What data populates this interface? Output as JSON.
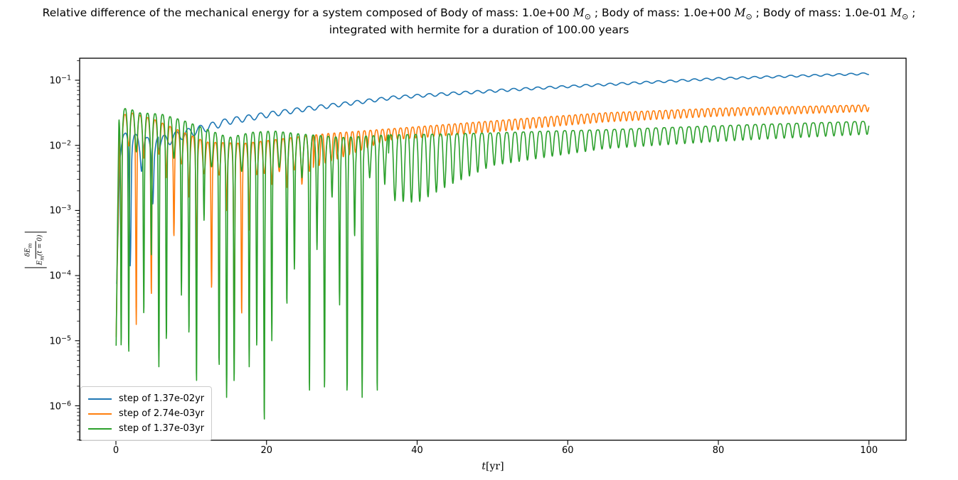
{
  "figure": {
    "title_line1_parts": [
      {
        "text": "Relative difference of the mechanical energy for a system composed of Body of mass: 1.0e+00 "
      },
      {
        "text": "M",
        "style": "italic"
      },
      {
        "text": "⊙",
        "style": "sub"
      },
      {
        "text": " ; Body of mass: 1.0e+00 "
      },
      {
        "text": "M",
        "style": "italic"
      },
      {
        "text": "⊙",
        "style": "sub"
      },
      {
        "text": " ; Body of mass: 1.0e-01 "
      },
      {
        "text": "M",
        "style": "italic"
      },
      {
        "text": "⊙",
        "style": "sub"
      },
      {
        "text": " ;"
      }
    ],
    "title_line2": "integrated with hermite for a duration of 100.00 years",
    "xlabel": {
      "italic_part": "t",
      "rest": "[yr]"
    },
    "ylabel": {
      "numerator_main": "δE",
      "numerator_sub": "m",
      "denominator_main": "E",
      "denominator_sub": "m",
      "denominator_rest": "(t = 0)"
    }
  },
  "chart_data": {
    "type": "line",
    "title": "Relative difference of the mechanical energy for a system composed of Body of mass: 1.0e+00 M⊙ ; Body of mass: 1.0e+00 M⊙ ; Body of mass: 1.0e-01 M⊙ ; integrated with hermite for a duration of 100.00 years",
    "xlabel": "t[yr]",
    "ylabel": "|δE_m / E_m(t=0)|",
    "grid": false,
    "x_axis": {
      "min": -4.82,
      "max": 104.93,
      "ticks": [
        0,
        20,
        40,
        60,
        80,
        100
      ]
    },
    "y_axis": {
      "scale": "log",
      "min_log10": -6.53,
      "max_log10": -0.662,
      "tick_exponents": [
        -1,
        -2,
        -3,
        -4,
        -5,
        -6
      ]
    },
    "legend": {
      "position": "lower left",
      "entries": [
        "step of 1.37e-02yr",
        "step of 2.74e-03yr",
        "step of 1.37e-03yr"
      ]
    },
    "series": [
      {
        "name": "step of 1.37e-02yr",
        "color": "#1f77b4",
        "t_start": 0.1,
        "trend_log10": [
          [
            0.1,
            -3.95
          ],
          [
            0.5,
            -1.9
          ],
          [
            1.5,
            -1.78
          ],
          [
            3,
            -1.85
          ],
          [
            5,
            -1.9
          ],
          [
            7,
            -1.82
          ],
          [
            10,
            -1.73
          ],
          [
            15,
            -1.58
          ],
          [
            20,
            -1.49
          ],
          [
            25,
            -1.41
          ],
          [
            30,
            -1.34
          ],
          [
            37,
            -1.24
          ],
          [
            45,
            -1.18
          ],
          [
            55,
            -1.11
          ],
          [
            65,
            -1.05
          ],
          [
            80,
            -0.96
          ],
          [
            100,
            -0.885
          ]
        ],
        "chaos": {
          "end": 5.65,
          "period": 1.5,
          "phase": -0.35,
          "base_amp": 0.35,
          "spike_depths_log10": [
            -2.3,
            -3.85,
            -2.4,
            -2.9
          ]
        },
        "osc": {
          "period": 1.6,
          "phase": 0,
          "sharpness": 1.2,
          "amp_log10": [
            [
              5.65,
              0.22
            ],
            [
              8,
              0.15
            ],
            [
              15,
              0.1
            ],
            [
              25,
              0.07
            ],
            [
              37,
              0.05
            ],
            [
              60,
              0.035
            ],
            [
              100,
              0.028
            ]
          ]
        }
      },
      {
        "name": "step of 2.74e-03yr",
        "color": "#ff7f0e",
        "t_start": 0.03,
        "trend_log10": [
          [
            0,
            -5.1
          ],
          [
            0.5,
            -1.55
          ],
          [
            2,
            -1.5
          ],
          [
            5,
            -1.6
          ],
          [
            8,
            -1.75
          ],
          [
            12,
            -1.95
          ],
          [
            17,
            -1.97
          ],
          [
            22,
            -1.9
          ],
          [
            28,
            -1.82
          ],
          [
            36,
            -1.75
          ],
          [
            45,
            -1.67
          ],
          [
            55,
            -1.58
          ],
          [
            65,
            -1.5
          ],
          [
            80,
            -1.43
          ],
          [
            100,
            -1.38
          ]
        ],
        "chaos": {
          "end": 26.2,
          "period": 1.0,
          "phase": 0.2,
          "base_amp": 0.5,
          "spike_depths_log10": [
            -4.3,
            -2.0,
            -4.75,
            -2.2,
            -4.3,
            -1.95,
            -2.5,
            -3.4,
            -2.15,
            -2.8,
            -3.9,
            -2.2,
            -4.2,
            -2.05,
            -3.0,
            -5.3,
            -4.6,
            -3.3,
            -2.45,
            -2.2,
            -2.6,
            -2.2,
            -2.65,
            -2.3,
            -2.6,
            -2.4
          ]
        },
        "osc": {
          "period": 0.8,
          "phase": 0.2,
          "sharpness": 1.7,
          "amp_log10": [
            [
              26.2,
              0.5
            ],
            [
              31,
              0.35
            ],
            [
              36,
              0.17
            ],
            [
              50,
              0.17
            ],
            [
              65,
              0.14
            ],
            [
              100,
              0.1
            ]
          ]
        }
      },
      {
        "name": "step of 1.37e-03yr",
        "color": "#2ca02c",
        "t_start": 0.03,
        "trend_log10": [
          [
            0,
            -5.3
          ],
          [
            0.4,
            -1.48
          ],
          [
            1.5,
            -1.42
          ],
          [
            3,
            -1.5
          ],
          [
            6,
            -1.52
          ],
          [
            9,
            -1.62
          ],
          [
            12,
            -1.75
          ],
          [
            15,
            -1.88
          ],
          [
            18,
            -1.8
          ],
          [
            21,
            -1.78
          ],
          [
            24,
            -1.82
          ],
          [
            27,
            -1.85
          ],
          [
            30,
            -1.88
          ],
          [
            33,
            -1.86
          ],
          [
            36,
            -1.84
          ],
          [
            42,
            -1.83
          ],
          [
            50,
            -1.81
          ],
          [
            58,
            -1.78
          ],
          [
            65,
            -1.76
          ],
          [
            75,
            -1.72
          ],
          [
            85,
            -1.68
          ],
          [
            100,
            -1.63
          ]
        ],
        "chaos": {
          "end": 36.2,
          "period": 1.0,
          "phase": 0.2,
          "base_amp": 0.55,
          "spike_depths_log10": [
            -5.1,
            -5.2,
            -2.1,
            -4.6,
            -3.7,
            -5.4,
            -5.0,
            -2.2,
            -4.3,
            -4.9,
            -5.65,
            -3.15,
            -2.3,
            -5.4,
            -5.87,
            -5.65,
            -2.4,
            -5.4,
            -5.1,
            -6.25,
            -5.0,
            -2.2,
            -4.45,
            -3.9,
            -2.5,
            -5.8,
            -3.6,
            -5.75,
            -2.8,
            -4.45,
            -5.8,
            -3.4,
            -5.87,
            -2.5,
            -5.8,
            -2.6
          ]
        },
        "osc": {
          "period": 1.1,
          "phase": 0.2,
          "sharpness": 2.1,
          "amp_log10": [
            [
              36.2,
              1.0
            ],
            [
              40,
              1.05
            ],
            [
              44,
              0.8
            ],
            [
              50,
              0.5
            ],
            [
              57,
              0.4
            ],
            [
              65,
              0.29
            ],
            [
              80,
              0.24
            ],
            [
              100,
              0.2
            ]
          ]
        }
      }
    ]
  }
}
